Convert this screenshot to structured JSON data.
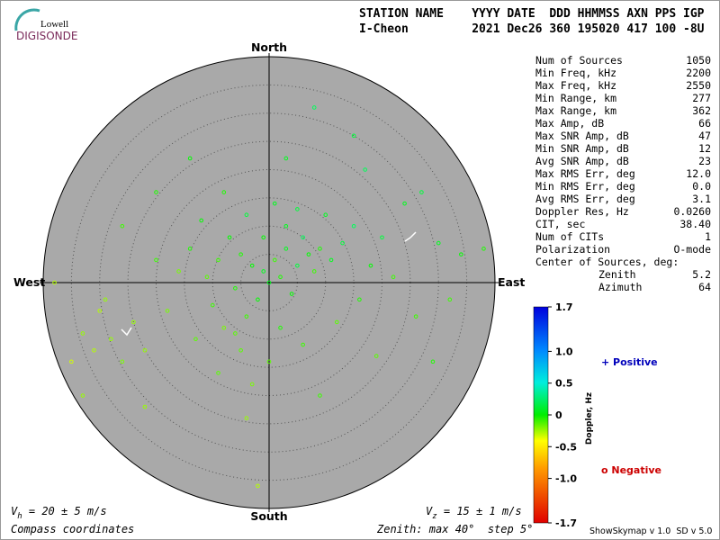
{
  "logo": {
    "top": "Lowell",
    "bottom": "DIGISONDE"
  },
  "header": {
    "line1": "STATION NAME    YYYY DATE  DDD HHMMSS AXN PPS IGP",
    "line2": "I-Cheon         2021 Dec26 360 195020 417 100 -8U"
  },
  "stats": {
    "rows": [
      [
        "Num of Sources",
        "1050"
      ],
      [
        "Min Freq, kHz",
        "2200"
      ],
      [
        "Max Freq, kHz",
        "2550"
      ],
      [
        "Min Range, km",
        "277"
      ],
      [
        "Max Range, km",
        "362"
      ],
      [
        "Max Amp, dB",
        "66"
      ],
      [
        "Max SNR Amp, dB",
        "47"
      ],
      [
        "Min SNR Amp, dB",
        "12"
      ],
      [
        "Avg SNR Amp, dB",
        "23"
      ],
      [
        "Max RMS Err, deg",
        "12.0"
      ],
      [
        "Min RMS Err, deg",
        "0.0"
      ],
      [
        "Avg RMS Err, deg",
        "3.1"
      ],
      [
        "Doppler Res, Hz",
        "0.0260"
      ],
      [
        "CIT, sec",
        "38.40"
      ],
      [
        "Num of CITs",
        "1"
      ],
      [
        "Polarization",
        "O-mode"
      ]
    ],
    "center_heading": "Center of Sources, deg:",
    "center_rows": [
      [
        "Zenith",
        "5.2"
      ],
      [
        "Azimuth",
        "64"
      ]
    ]
  },
  "compass": {
    "north": "North",
    "south": "South",
    "east": "East",
    "west": "West"
  },
  "footer": {
    "vh": {
      "symbol": "V",
      "sub": "h",
      "text": " = 20 ± 5 m/s"
    },
    "vz": {
      "symbol": "V",
      "sub": "z",
      "text": " = 15 ± 1 m/s"
    },
    "coords": "Compass coordinates",
    "zenith": "Zenith: max 40°  step 5°",
    "version": "ShowSkymap v 1.0  SD v 5.0"
  },
  "legend": {
    "positive": "+ Positive",
    "negative": "o Negative"
  },
  "chart_data": {
    "type": "polar-scatter",
    "rlim": 40,
    "rstep": 5,
    "x": [
      -5,
      -3,
      -1,
      1,
      3,
      -7,
      -9,
      -11,
      -6,
      -2,
      0,
      2,
      5,
      7,
      9,
      11,
      13,
      6,
      8,
      4,
      -4,
      -6,
      -8,
      -5,
      -10,
      -14,
      -16,
      -12,
      -4,
      1,
      5,
      -8,
      10,
      15,
      18,
      20,
      22,
      16,
      12,
      6,
      0,
      -3,
      -13,
      -18,
      -20,
      -24,
      -30,
      -33,
      -31,
      -28,
      -35,
      -26,
      -22,
      -29,
      -38,
      -33,
      24,
      17,
      27,
      30,
      34,
      38,
      26,
      19,
      15,
      -14,
      3,
      -20,
      -4,
      9,
      -2,
      -22,
      29,
      32,
      -26,
      8,
      -9,
      2,
      -1,
      3
    ],
    "y": [
      5,
      3,
      2,
      4,
      6,
      8,
      4,
      1,
      -1,
      -3,
      0,
      1,
      3,
      5,
      6,
      4,
      7,
      8,
      2,
      -2,
      -6,
      -9,
      -8,
      -12,
      -4,
      6,
      2,
      11,
      12,
      14,
      13,
      16,
      12,
      10,
      3,
      8,
      1,
      -3,
      -7,
      -11,
      -14,
      -18,
      -10,
      -5,
      4,
      -7,
      -5,
      -9,
      -12,
      -10,
      -14,
      -14,
      -12,
      -3,
      0,
      -20,
      14,
      20,
      16,
      7,
      5,
      6,
      -6,
      -13,
      26,
      22,
      22,
      16,
      -24,
      -20,
      -36,
      -22,
      -14,
      -3,
      10,
      31,
      -16,
      -8,
      8,
      10
    ],
    "doppler": [
      -0.1,
      0,
      0.1,
      -0.2,
      0.1,
      0,
      -0.2,
      -0.3,
      -0.1,
      0,
      0.1,
      -0.1,
      0.2,
      0,
      -0.1,
      0.1,
      0.2,
      0.3,
      -0.2,
      0,
      -0.2,
      -0.3,
      -0.4,
      -0.3,
      -0.2,
      -0.1,
      -0.4,
      0,
      0.2,
      0.1,
      0.2,
      -0.1,
      0.1,
      0.3,
      0,
      0.2,
      -0.2,
      -0.1,
      -0.3,
      -0.2,
      -0.3,
      -0.4,
      -0.3,
      -0.4,
      -0.2,
      -0.5,
      -0.6,
      -0.5,
      -0.6,
      -0.5,
      -0.7,
      -0.4,
      -0.5,
      -0.5,
      -0.6,
      -0.5,
      0.1,
      0.3,
      0.2,
      0.1,
      0,
      -0.1,
      -0.2,
      -0.3,
      0.2,
      0,
      0.1,
      -0.1,
      -0.5,
      -0.2,
      -0.6,
      -0.5,
      -0.1,
      -0.2,
      -0.2,
      0.3,
      -0.3,
      -0.1,
      0,
      0.1
    ],
    "colorbar": {
      "title": "Doppler, Hz",
      "lim": [
        -1.7,
        1.7
      ],
      "ticks": [
        1.7,
        {
          "value": 1.0,
          "label": "1.0"
        },
        0.5,
        0,
        -0.5,
        {
          "value": -1.0,
          "label": "-1.0"
        },
        -1.7
      ]
    },
    "disc_color": "#a9a9a9"
  }
}
